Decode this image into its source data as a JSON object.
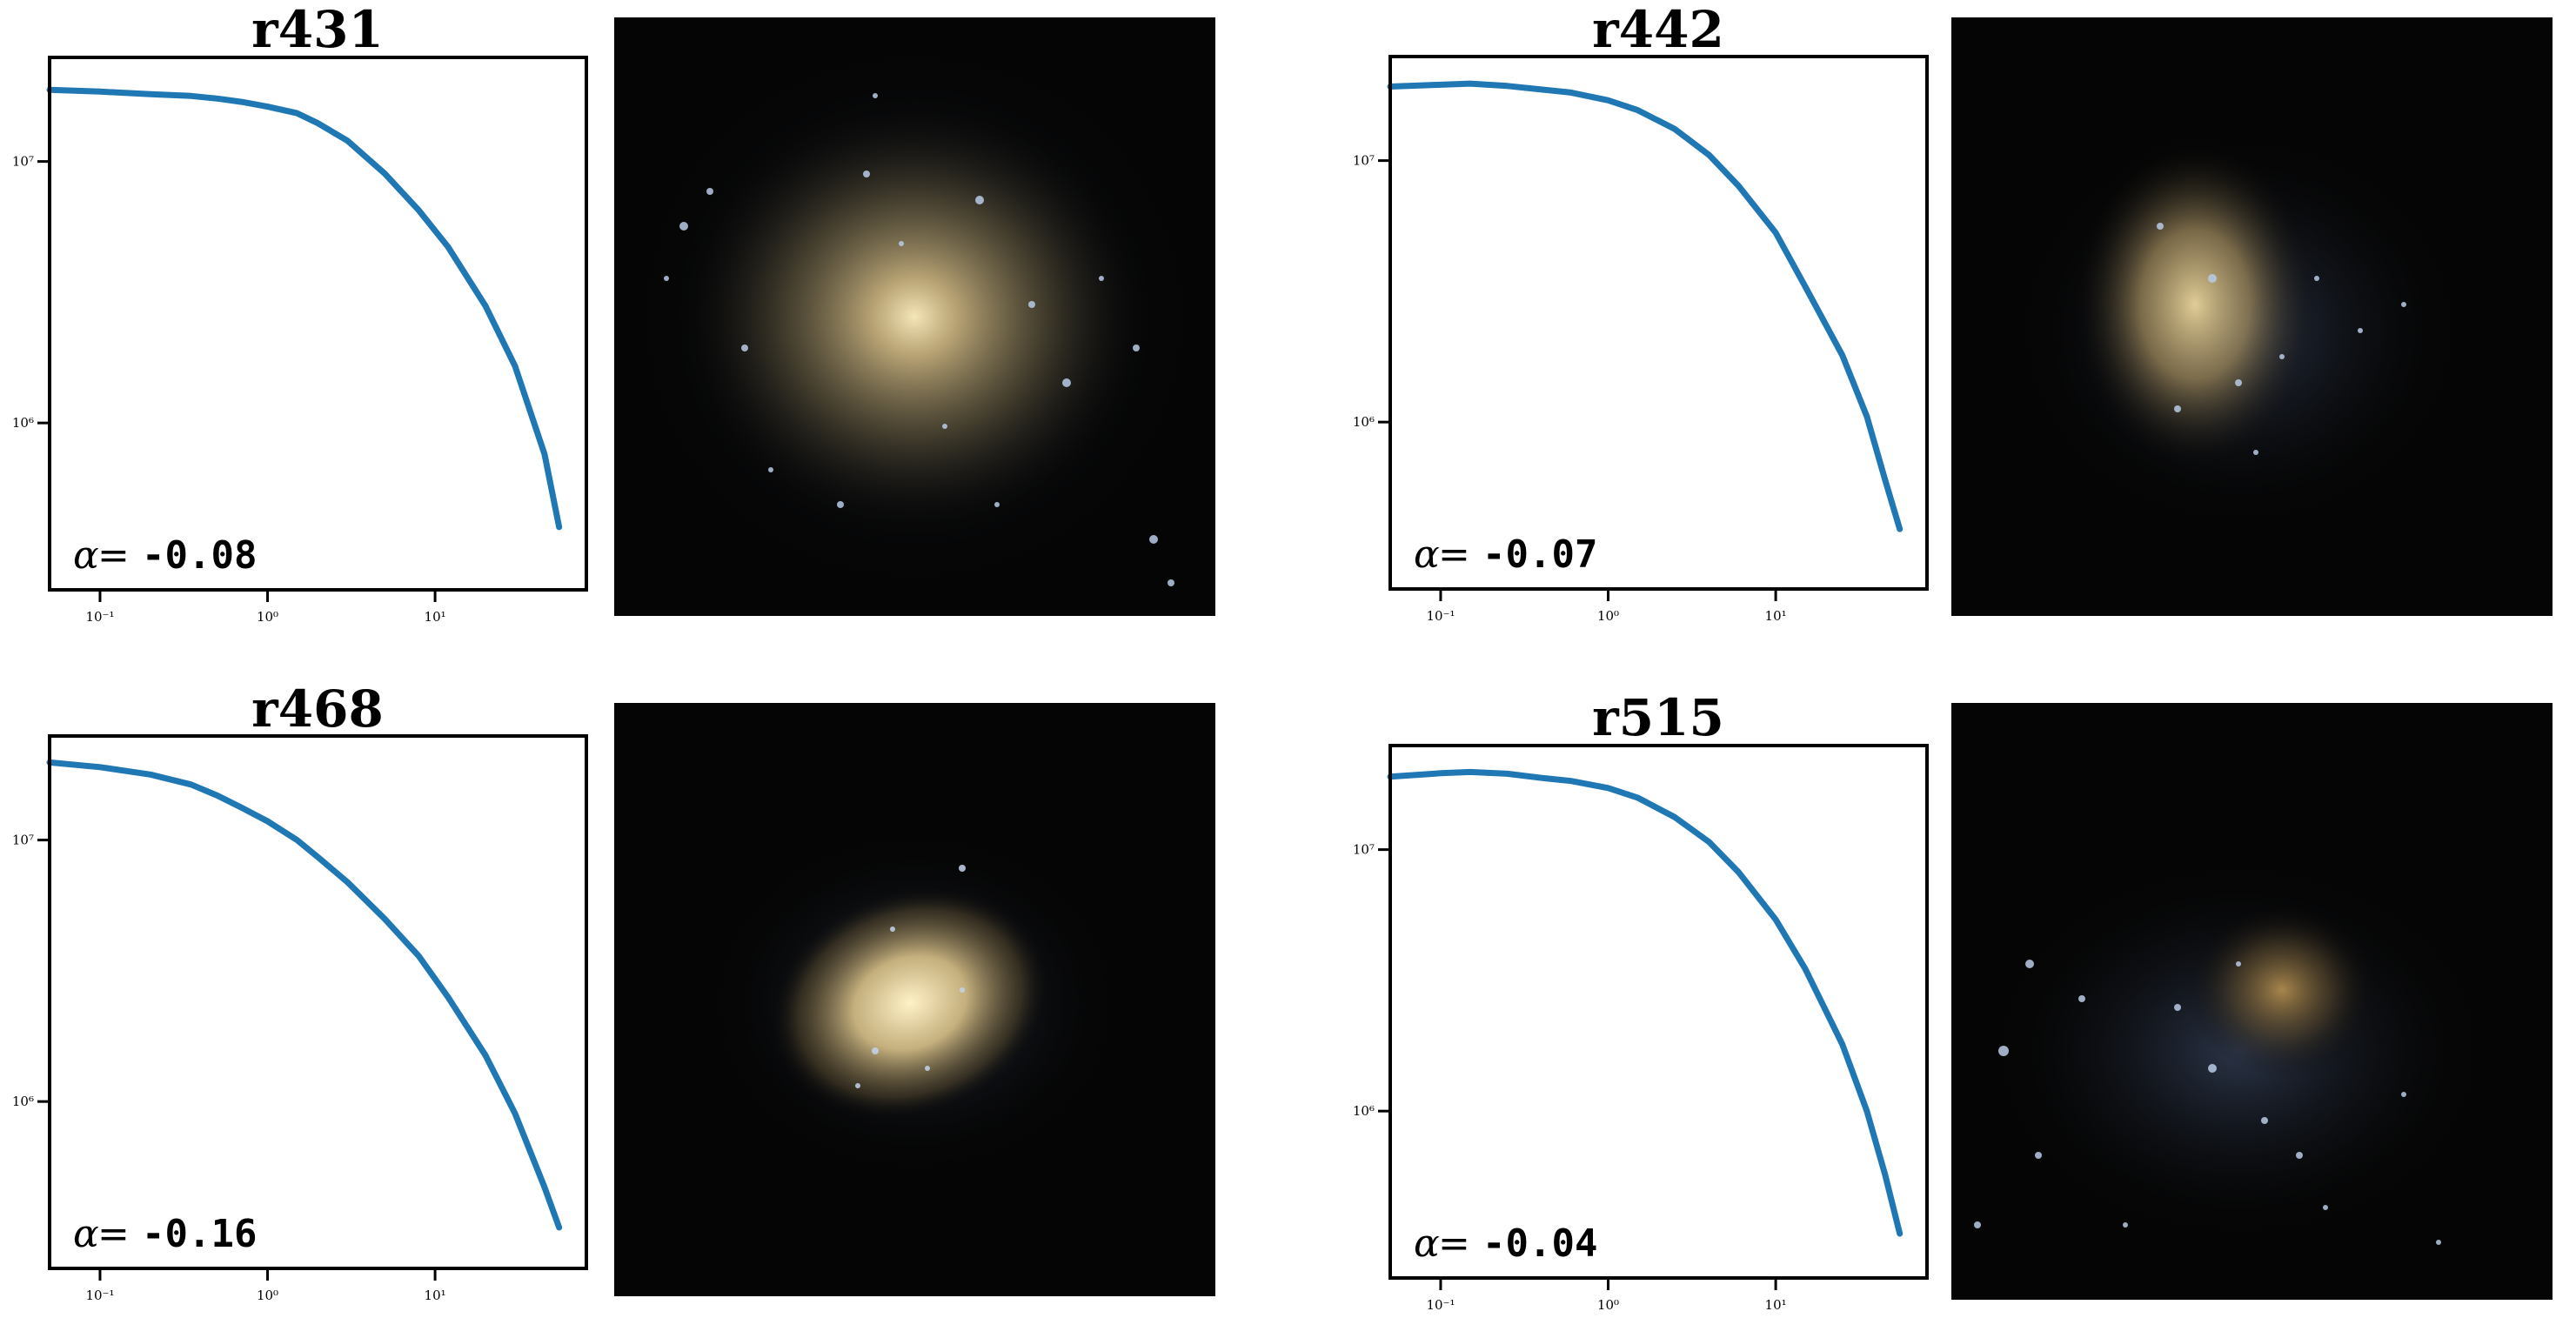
{
  "chart_data": [
    {
      "type": "line",
      "title": "r431",
      "xscale": "log",
      "yscale": "log",
      "xlim": [
        0.05,
        80
      ],
      "ylim": [
        230000,
        25000000
      ],
      "xtick_values": [
        0.1,
        1,
        10
      ],
      "xtick_labels": [
        "10⁻¹",
        "10⁰",
        "10¹"
      ],
      "ytick_values": [
        1000000,
        10000000
      ],
      "ytick_labels": [
        "10⁶",
        "10⁷"
      ],
      "grid": false,
      "line_color": "#1f77b4",
      "alpha_label": "-0.08",
      "series": [
        {
          "x": [
            0.05,
            0.1,
            0.2,
            0.35,
            0.5,
            0.7,
            1.0,
            1.5,
            2.0,
            3.0,
            5.0,
            8.0,
            12.0,
            20.0,
            30.0,
            45.0,
            55.0
          ],
          "y": [
            18800000,
            18500000,
            18100000,
            17800000,
            17400000,
            16900000,
            16200000,
            15300000,
            14000000,
            12000000,
            9000000,
            6500000,
            4700000,
            2800000,
            1650000,
            760000,
            400000
          ]
        }
      ]
    },
    {
      "type": "line",
      "title": "r442",
      "xscale": "log",
      "yscale": "log",
      "xlim": [
        0.05,
        80
      ],
      "ylim": [
        230000,
        25000000
      ],
      "xtick_values": [
        0.1,
        1,
        10
      ],
      "xtick_labels": [
        "10⁻¹",
        "10⁰",
        "10¹"
      ],
      "ytick_values": [
        1000000,
        10000000
      ],
      "ytick_labels": [
        "10⁶",
        "10⁷"
      ],
      "grid": false,
      "line_color": "#1f77b4",
      "alpha_label": "-0.07",
      "series": [
        {
          "x": [
            0.05,
            0.1,
            0.15,
            0.25,
            0.4,
            0.6,
            1.0,
            1.5,
            2.5,
            4.0,
            6.0,
            10.0,
            15.0,
            25.0,
            35.0,
            45.0,
            55.0
          ],
          "y": [
            19200000,
            19500000,
            19700000,
            19300000,
            18700000,
            18200000,
            17000000,
            15600000,
            13200000,
            10500000,
            8000000,
            5300000,
            3300000,
            1800000,
            1050000,
            600000,
            390000
          ]
        }
      ]
    },
    {
      "type": "line",
      "title": "r468",
      "xscale": "log",
      "yscale": "log",
      "xlim": [
        0.05,
        80
      ],
      "ylim": [
        230000,
        25000000
      ],
      "xtick_values": [
        0.1,
        1,
        10
      ],
      "xtick_labels": [
        "10⁻¹",
        "10⁰",
        "10¹"
      ],
      "ytick_values": [
        1000000,
        10000000
      ],
      "ytick_labels": [
        "10⁶",
        "10⁷"
      ],
      "grid": false,
      "line_color": "#1f77b4",
      "alpha_label": "-0.16",
      "series": [
        {
          "x": [
            0.05,
            0.1,
            0.2,
            0.35,
            0.5,
            0.7,
            1.0,
            1.5,
            2.0,
            3.0,
            5.0,
            8.0,
            12.0,
            20.0,
            30.0,
            45.0,
            55.0
          ],
          "y": [
            19800000,
            19000000,
            17800000,
            16300000,
            14800000,
            13300000,
            11800000,
            10000000,
            8600000,
            6900000,
            5000000,
            3600000,
            2500000,
            1500000,
            900000,
            470000,
            330000
          ]
        }
      ]
    },
    {
      "type": "line",
      "title": "r515",
      "xscale": "log",
      "yscale": "log",
      "xlim": [
        0.05,
        80
      ],
      "ylim": [
        230000,
        25000000
      ],
      "xtick_values": [
        0.1,
        1,
        10
      ],
      "xtick_labels": [
        "10⁻¹",
        "10⁰",
        "10¹"
      ],
      "ytick_values": [
        1000000,
        10000000
      ],
      "ytick_labels": [
        "10⁶",
        "10⁷"
      ],
      "grid": false,
      "line_color": "#1f77b4",
      "alpha_label": "-0.04",
      "series": [
        {
          "x": [
            0.05,
            0.1,
            0.15,
            0.25,
            0.4,
            0.6,
            1.0,
            1.5,
            2.5,
            4.0,
            6.0,
            10.0,
            15.0,
            25.0,
            35.0,
            45.0,
            55.0
          ],
          "y": [
            19000000,
            19600000,
            19800000,
            19500000,
            18800000,
            18300000,
            17200000,
            15800000,
            13300000,
            10700000,
            8200000,
            5400000,
            3500000,
            1800000,
            1000000,
            570000,
            340000
          ]
        }
      ]
    }
  ],
  "galaxy_images": [
    {
      "name": "r431",
      "colors": [
        "#050505",
        "#1b2233",
        "#b7a77a",
        "#8fa8c9"
      ]
    },
    {
      "name": "r442",
      "colors": [
        "#050505",
        "#1b2233",
        "#c7b382",
        "#8fa8c9"
      ]
    },
    {
      "name": "r468",
      "colors": [
        "#050505",
        "#1b2233",
        "#e6d3a0",
        "#8fa8c9"
      ]
    },
    {
      "name": "r515",
      "colors": [
        "#050505",
        "#1b2233",
        "#8a6e40",
        "#8fa8c9"
      ]
    }
  ]
}
